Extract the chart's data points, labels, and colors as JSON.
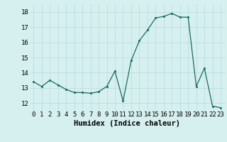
{
  "x": [
    0,
    1,
    2,
    3,
    4,
    5,
    6,
    7,
    8,
    9,
    10,
    11,
    12,
    13,
    14,
    15,
    16,
    17,
    18,
    19,
    20,
    21,
    22,
    23
  ],
  "y": [
    13.4,
    13.1,
    13.5,
    13.2,
    12.9,
    12.7,
    12.7,
    12.65,
    12.75,
    13.1,
    14.1,
    12.15,
    14.8,
    16.1,
    16.8,
    17.6,
    17.7,
    17.9,
    17.65,
    17.65,
    13.1,
    14.3,
    11.8,
    11.7
  ],
  "xlabel": "Humidex (Indice chaleur)",
  "xlim": [
    -0.5,
    23.5
  ],
  "ylim": [
    11.5,
    18.5
  ],
  "yticks": [
    12,
    13,
    14,
    15,
    16,
    17,
    18
  ],
  "xtick_labels": [
    "0",
    "1",
    "2",
    "3",
    "4",
    "5",
    "6",
    "7",
    "8",
    "9",
    "10",
    "11",
    "12",
    "13",
    "14",
    "15",
    "16",
    "17",
    "18",
    "19",
    "20",
    "21",
    "22",
    "23"
  ],
  "line_color": "#1a6b5a",
  "marker_color": "#1a6b5a",
  "bg_color": "#d6f0f0",
  "grid_color": "#b8dada",
  "xlabel_fontsize": 7.5,
  "tick_fontsize": 6.5
}
